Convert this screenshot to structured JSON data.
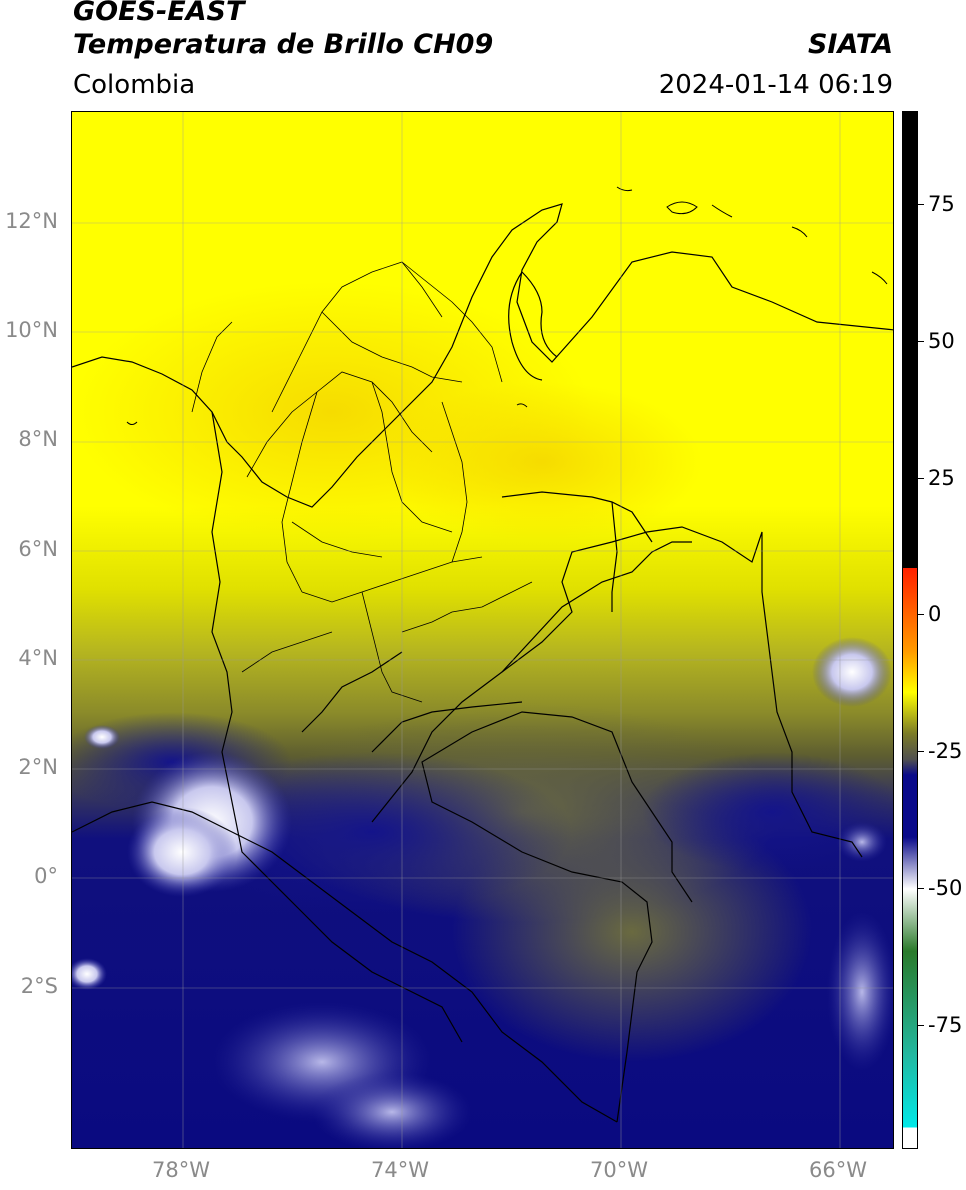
{
  "header": {
    "title_line1": "GOES-EAST",
    "title_line2": "Temperatura de Brillo CH09",
    "agency": "SIATA",
    "region": "Colombia",
    "timestamp": "2024-01-14 06:19"
  },
  "map": {
    "projection": "lat/lon",
    "lon_range": [
      -80,
      -65
    ],
    "lat_range": [
      -4.6,
      14
    ],
    "lat_labels": [
      "12°N",
      "10°N",
      "8°N",
      "6°N",
      "4°N",
      "2°N",
      "0°",
      "2°S"
    ],
    "lon_labels": [
      "78°W",
      "74°W",
      "70°W",
      "66°W"
    ],
    "label_color": "#8a8a8a",
    "grid": true
  },
  "colorbar": {
    "labels": [
      "75",
      "50",
      "25",
      "0",
      "-25",
      "-50",
      "-75"
    ],
    "colors": {
      "warm_top": "#000000",
      "red": "#ff2000",
      "orange": "#ff9a00",
      "yellow": "#ffff00",
      "olive": "#7b7b26",
      "gray": "#505050",
      "navy": "#0a0a8a",
      "white": "#ffffff",
      "green": "#2a7a2a",
      "teal": "#22b8a0",
      "cyan": "#00e8e8"
    }
  }
}
